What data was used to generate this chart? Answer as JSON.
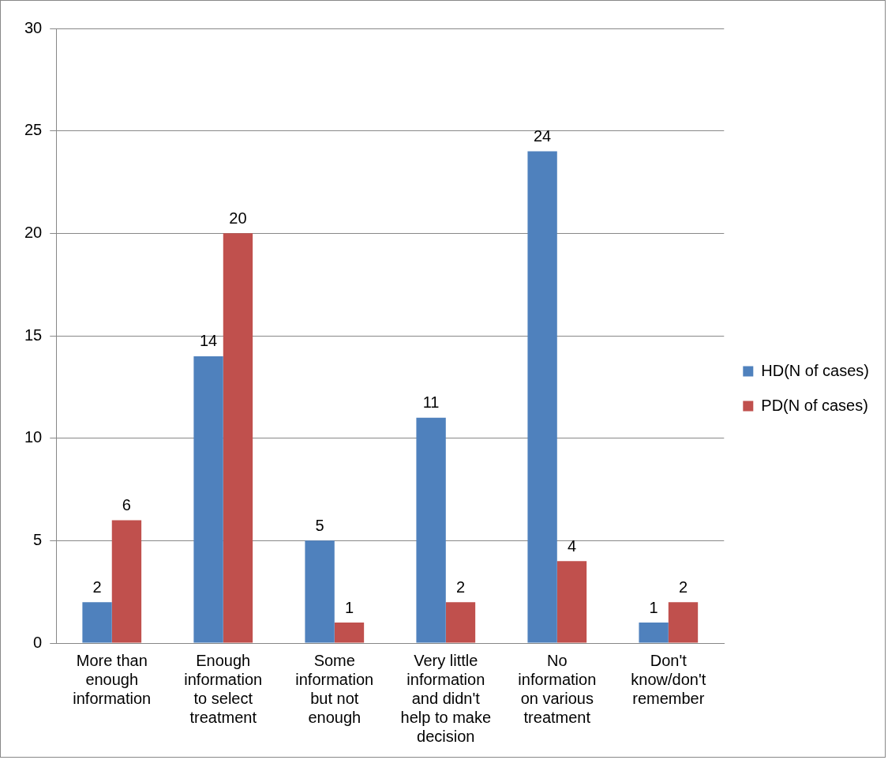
{
  "chart_data": {
    "type": "bar",
    "categories": [
      "More than enough information",
      "Enough information to select treatment",
      "Some information but not enough",
      "Very little information and didn't help to make decision",
      "No information on various treatment",
      "Don't know/don't remember"
    ],
    "series": [
      {
        "name": "HD(N of cases)",
        "color": "#4f81bd",
        "values": [
          2,
          14,
          5,
          11,
          24,
          1
        ]
      },
      {
        "name": "PD(N of cases)",
        "color": "#c0504d",
        "values": [
          6,
          20,
          1,
          2,
          4,
          2
        ]
      }
    ],
    "ylim": [
      0,
      30
    ],
    "yticks": [
      0,
      5,
      10,
      15,
      20,
      25,
      30
    ],
    "grid": "y",
    "legend": "right",
    "data_labels": true
  }
}
